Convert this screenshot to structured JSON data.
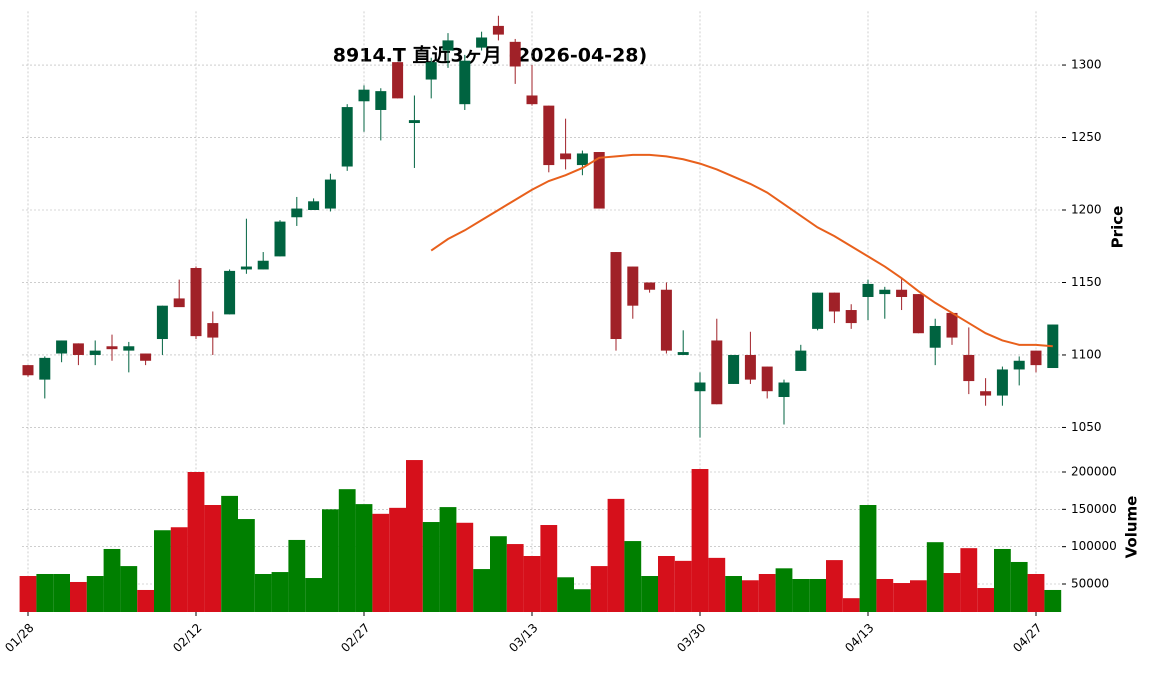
{
  "chart_data": {
    "type": "candlestick",
    "title": "8914.T 直近3ヶ月 (2026-04-28)",
    "categories": [
      "01/28",
      null,
      null,
      null,
      null,
      null,
      null,
      null,
      null,
      null,
      "02/12",
      null,
      null,
      null,
      null,
      null,
      null,
      null,
      null,
      null,
      "02/27",
      null,
      null,
      null,
      null,
      null,
      null,
      null,
      null,
      null,
      "03/13",
      null,
      null,
      null,
      null,
      null,
      null,
      null,
      null,
      null,
      "03/30",
      null,
      null,
      null,
      null,
      null,
      null,
      null,
      null,
      null,
      "04/13",
      null,
      null,
      null,
      null,
      null,
      null,
      null,
      null,
      null,
      "04/27",
      null
    ],
    "open": [
      1093,
      1083,
      1101,
      1108,
      1100,
      1106,
      1103,
      1101,
      1111,
      1139,
      1160,
      1122,
      1128,
      1159,
      1159,
      1168,
      1195,
      1200,
      1201,
      1230,
      1275,
      1269,
      1302,
      1260,
      1290,
      1310,
      1273,
      1312,
      1327,
      1316,
      1279,
      1272,
      1239,
      1231,
      1240,
      1171,
      1161,
      1150,
      1145,
      1100,
      1075,
      1110,
      1080,
      1100,
      1092,
      1071,
      1089,
      1118,
      1143,
      1131,
      1140,
      1142,
      1145,
      1142,
      1105,
      1129,
      1100,
      1075,
      1072,
      1090,
      1103,
      1091
    ],
    "high": [
      1093,
      1099,
      1110,
      1108,
      1110,
      1114,
      1109,
      1101,
      1134,
      1152,
      1161,
      1130,
      1159,
      1194,
      1171,
      1193,
      1209,
      1208,
      1225,
      1273,
      1286,
      1284,
      1302,
      1279,
      1305,
      1322,
      1307,
      1323,
      1334,
      1318,
      1300,
      1272,
      1263,
      1241,
      1240,
      1171,
      1161,
      1150,
      1150,
      1117,
      1088,
      1125,
      1100,
      1116,
      1092,
      1083,
      1107,
      1143,
      1143,
      1135,
      1152,
      1147,
      1153,
      1142,
      1125,
      1129,
      1119,
      1084,
      1092,
      1099,
      1103,
      1121
    ],
    "low": [
      1085,
      1070,
      1095,
      1093,
      1093,
      1096,
      1088,
      1093,
      1100,
      1134,
      1111,
      1100,
      1128,
      1156,
      1159,
      1168,
      1189,
      1200,
      1199,
      1227,
      1254,
      1248,
      1277,
      1229,
      1277,
      1298,
      1269,
      1310,
      1317,
      1287,
      1272,
      1226,
      1228,
      1224,
      1201,
      1103,
      1125,
      1143,
      1101,
      1100,
      1043,
      1066,
      1080,
      1080,
      1070,
      1052,
      1089,
      1117,
      1122,
      1118,
      1124,
      1125,
      1131,
      1115,
      1093,
      1107,
      1073,
      1065,
      1065,
      1079,
      1088,
      1091
    ],
    "close": [
      1086,
      1098,
      1110,
      1100,
      1103,
      1104,
      1106,
      1096,
      1134,
      1133,
      1113,
      1112,
      1158,
      1161,
      1165,
      1192,
      1201,
      1206,
      1221,
      1271,
      1283,
      1282,
      1277,
      1262,
      1302,
      1317,
      1303,
      1319,
      1321,
      1299,
      1273,
      1231,
      1235,
      1239,
      1201,
      1111,
      1134,
      1145,
      1103,
      1102,
      1081,
      1066,
      1100,
      1083,
      1075,
      1081,
      1103,
      1143,
      1130,
      1122,
      1149,
      1145,
      1140,
      1115,
      1120,
      1112,
      1082,
      1072,
      1090,
      1096,
      1093,
      1121
    ],
    "up_color": "#006340",
    "down_color": "#a02128",
    "ma": {
      "color": "#e8601c",
      "values": [
        null,
        null,
        null,
        null,
        null,
        null,
        null,
        null,
        null,
        null,
        null,
        null,
        null,
        null,
        null,
        null,
        null,
        null,
        null,
        null,
        null,
        null,
        null,
        null,
        1172,
        1180,
        1186,
        1193,
        1200,
        1207,
        1214,
        1220,
        1224,
        1229,
        1236,
        1237,
        1238,
        1238,
        1237,
        1235,
        1232,
        1228,
        1223,
        1218,
        1212,
        1204,
        1196,
        1188,
        1182,
        1175,
        1168,
        1161,
        1153,
        1144,
        1136,
        1129,
        1122,
        1115,
        1110,
        1107,
        1107,
        1106
      ]
    },
    "ylabel": "Price",
    "ylim": [
      1041,
      1337
    ],
    "yticks": [
      1050,
      1100,
      1150,
      1200,
      1250,
      1300
    ],
    "grid": true,
    "volume": {
      "ylabel": "Volume",
      "up_color": "#007f00",
      "down_color": "#d6101b",
      "values": [
        60700,
        63400,
        63400,
        52700,
        60700,
        96900,
        74000,
        42000,
        122000,
        126000,
        200000,
        155800,
        168000,
        137000,
        63400,
        66000,
        109000,
        58000,
        150000,
        177000,
        157000,
        144000,
        152000,
        216000,
        133000,
        153000,
        132000,
        70000,
        114000,
        103500,
        87500,
        129000,
        59000,
        43000,
        74000,
        164000,
        107500,
        60700,
        87500,
        81000,
        204000,
        85000,
        60700,
        55000,
        63400,
        71000,
        56700,
        56700,
        82000,
        31000,
        155800,
        56700,
        51300,
        55000,
        106000,
        64700,
        98000,
        44600,
        96900,
        79500,
        63400,
        42000
      ],
      "ylim": [
        12500,
        218750
      ],
      "yticks": [
        50000,
        100000,
        150000,
        200000
      ]
    }
  }
}
